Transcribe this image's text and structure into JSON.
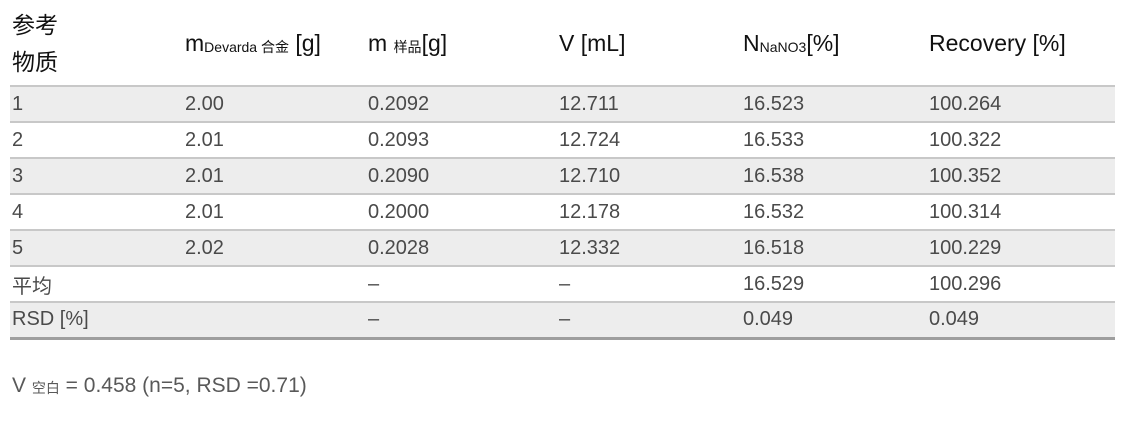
{
  "table": {
    "header": {
      "col0": "参考\n物质",
      "col1": {
        "base": "m",
        "sub": "Devarda 合金",
        "suffix": " [g]"
      },
      "col2": {
        "base": "m ",
        "sub": "样品",
        "suffix": "[g]"
      },
      "col3": {
        "label": "V [mL]"
      },
      "col4": {
        "base": "N",
        "sub": "NaNO3",
        "suffix": "[%]"
      },
      "col5": {
        "label": "Recovery [%]"
      }
    },
    "rows": [
      {
        "label": "1",
        "cells": [
          "2.00",
          "0.2092",
          "12.711",
          "16.523",
          "100.264"
        ]
      },
      {
        "label": "2",
        "cells": [
          "2.01",
          "0.2093",
          "12.724",
          "16.533",
          "100.322"
        ]
      },
      {
        "label": "3",
        "cells": [
          "2.01",
          "0.2090",
          "12.710",
          "16.538",
          "100.352"
        ]
      },
      {
        "label": "4",
        "cells": [
          "2.01",
          "0.2000",
          "12.178",
          "16.532",
          "100.314"
        ]
      },
      {
        "label": "5",
        "cells": [
          "2.02",
          "0.2028",
          "12.332",
          "16.518",
          "100.229"
        ]
      },
      {
        "label": "平均",
        "cells": [
          "",
          "–",
          "–",
          "16.529",
          "100.296"
        ]
      },
      {
        "label": "RSD [%]",
        "cells": [
          "",
          "–",
          "–",
          "0.049",
          "0.049"
        ]
      }
    ]
  },
  "footnote": {
    "base": "V ",
    "sub": "空白",
    "rest": " = 0.458 (n=5, RSD =0.71)"
  },
  "colors": {
    "shaded_row": "#ededed",
    "row_separator": "#c8c8c8",
    "bottom_rule": "#9e9e9e",
    "header_text": "#111111",
    "data_text": "#4a4a4a",
    "footnote_text": "#595959"
  },
  "chart_data": {
    "type": "table",
    "columns": [
      "参考物质",
      "m Devarda 合金 [g]",
      "m 样品 [g]",
      "V [mL]",
      "N NaNO3 [%]",
      "Recovery [%]"
    ],
    "rows": [
      [
        "1",
        "2.00",
        "0.2092",
        "12.711",
        "16.523",
        "100.264"
      ],
      [
        "2",
        "2.01",
        "0.2093",
        "12.724",
        "16.533",
        "100.322"
      ],
      [
        "3",
        "2.01",
        "0.2090",
        "12.710",
        "16.538",
        "100.352"
      ],
      [
        "4",
        "2.01",
        "0.2000",
        "12.178",
        "16.532",
        "100.314"
      ],
      [
        "5",
        "2.02",
        "0.2028",
        "12.332",
        "16.518",
        "100.229"
      ],
      [
        "平均",
        "",
        "–",
        "–",
        "16.529",
        "100.296"
      ],
      [
        "RSD [%]",
        "",
        "–",
        "–",
        "0.049",
        "0.049"
      ]
    ],
    "footnote": "V 空白 = 0.458 (n=5, RSD =0.71)"
  }
}
